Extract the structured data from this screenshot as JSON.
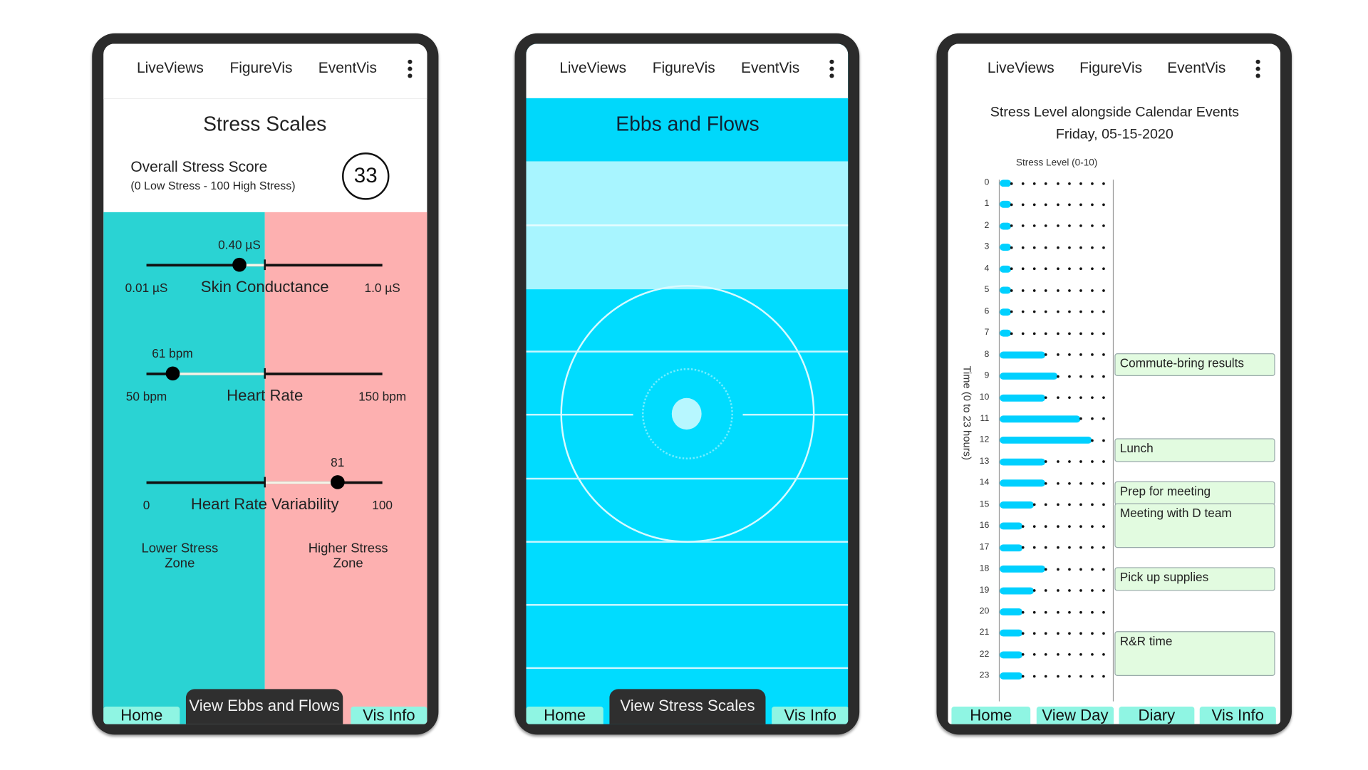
{
  "nav": {
    "items": [
      "LiveViews",
      "FigureVis",
      "EventVis"
    ],
    "menu_icon": "more-vert-icon"
  },
  "colors": {
    "teal_zone": "#2ad3d3",
    "pink_zone": "#fdb0b0",
    "cyan": "#00dcff",
    "light_cyan": "#a8f5ff",
    "button": "#8ff5e3",
    "bar": "#00d0ff",
    "event_bg": "#e2fbe0"
  },
  "stress_scales": {
    "title": "Stress Scales",
    "overall_label": "Overall Stress Score",
    "overall_range": "(0 Low Stress - 100 High Stress)",
    "overall_score": "33",
    "sliders": [
      {
        "name": "Skin Conductance",
        "value_label": "0.40 µS",
        "min_label": "0.01 µS",
        "max_label": "1.0 µS",
        "value": 0.4,
        "min": 0.01,
        "max": 1.0
      },
      {
        "name": "Heart Rate",
        "value_label": "61 bpm",
        "min_label": "50 bpm",
        "max_label": "150 bpm",
        "value": 61,
        "min": 50,
        "max": 150
      },
      {
        "name": "Heart Rate Variability",
        "value_label": "81",
        "min_label": "0",
        "max_label": "100",
        "value": 81,
        "min": 0,
        "max": 100
      }
    ],
    "lower_zone": [
      "Lower Stress",
      "Zone"
    ],
    "higher_zone": [
      "Higher Stress",
      "Zone"
    ],
    "buttons": {
      "home": "Home",
      "main": "View Ebbs and Flows",
      "info": "Vis Info"
    }
  },
  "ebbs_flows": {
    "title": "Ebbs and Flows",
    "buttons": {
      "home": "Home",
      "main": "View Stress Scales",
      "info": "Vis Info"
    }
  },
  "event_vis": {
    "title": "Stress Level alongside Calendar Events",
    "date": "Friday, 05-15-2020",
    "buttons": [
      "Home",
      "View Day",
      "Diary",
      "Vis Info"
    ]
  },
  "chart_data": {
    "type": "bar",
    "orientation": "horizontal",
    "xlabel": "Stress Level (0-10)",
    "ylabel": "Time (0 to 23 hours)",
    "xlim": [
      0,
      10
    ],
    "categories": [
      0,
      1,
      2,
      3,
      4,
      5,
      6,
      7,
      8,
      9,
      10,
      11,
      12,
      13,
      14,
      15,
      16,
      17,
      18,
      19,
      20,
      21,
      22,
      23
    ],
    "values": [
      1,
      1,
      1,
      1,
      1,
      1,
      1,
      1,
      4,
      5,
      4,
      7,
      8,
      4,
      4,
      3,
      2,
      2,
      4,
      3,
      2,
      2,
      2,
      2
    ],
    "events": [
      {
        "label": "Commute-bring results",
        "start": 8,
        "end": 9
      },
      {
        "label": "Lunch",
        "start": 12,
        "end": 13
      },
      {
        "label": "Prep for meeting",
        "start": 14,
        "end": 15
      },
      {
        "label": "Meeting with D team",
        "start": 15,
        "end": 17
      },
      {
        "label": "Pick up supplies",
        "start": 18,
        "end": 19
      },
      {
        "label": "R&R time",
        "start": 21,
        "end": 23
      }
    ]
  }
}
